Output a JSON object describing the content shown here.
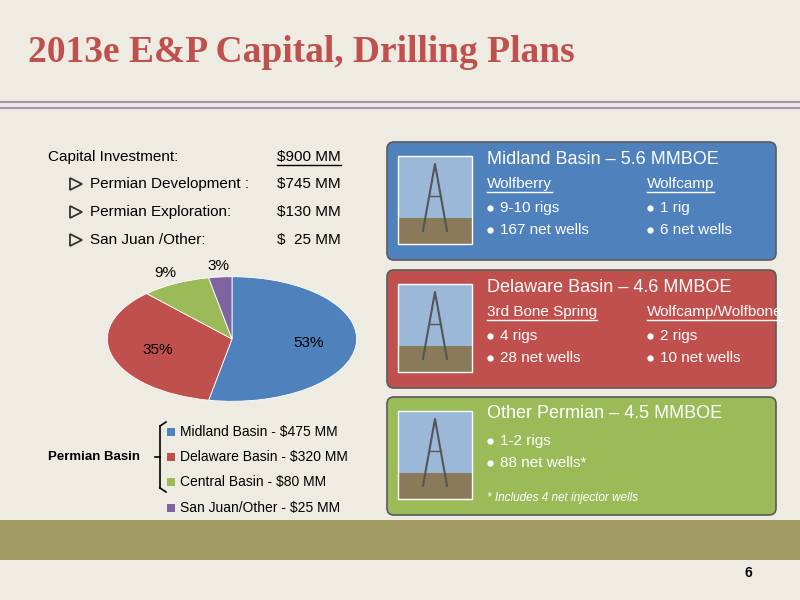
{
  "title": "2013e E&P Capital, Drilling Plans",
  "capital": {
    "rows": [
      [
        "Capital Investment:",
        "$900 MM"
      ],
      [
        "Permian Development :",
        "$745 MM"
      ],
      [
        "Permian Exploration:",
        "$130 MM"
      ],
      [
        "San Juan /Other:",
        "$  25 MM"
      ]
    ]
  },
  "chart_data": {
    "type": "pie",
    "categories": [
      "Midland Basin - $475 MM",
      "Delaware Basin - $320 MM",
      "Central Basin - $80 MM",
      "San Juan/Other - $25 MM"
    ],
    "values": [
      53,
      35,
      9,
      3
    ],
    "value_labels": [
      "53%",
      "35%",
      "9%",
      "3%"
    ],
    "colors": [
      "#4f81bd",
      "#c0504d",
      "#9bbb59",
      "#8064a2"
    ],
    "data_labels": true,
    "group_label": "Permian Basin"
  },
  "boxes": [
    {
      "heading": "Midland Basin – 5.6 MMBOE",
      "color": "#4f81bd",
      "columns": [
        {
          "header": "Wolfberry",
          "items": [
            "9-10 rigs",
            "167 net wells"
          ]
        },
        {
          "header": "Wolfcamp",
          "items": [
            "1 rig",
            "6 net wells"
          ]
        }
      ]
    },
    {
      "heading": "Delaware Basin – 4.6 MMBOE",
      "color": "#c0504d",
      "columns": [
        {
          "header": "3rd Bone Spring",
          "items": [
            "4 rigs",
            "28 net wells"
          ]
        },
        {
          "header": "Wolfcamp/Wolfbone",
          "items": [
            "2 rigs",
            "10 net wells"
          ]
        }
      ]
    },
    {
      "heading": "Other Permian – 4.5 MMBOE",
      "color": "#9bbb59",
      "columns": [
        {
          "items": [
            "1-2 rigs",
            "88 net wells*"
          ]
        }
      ],
      "note": "* Includes 4 net injector wells"
    }
  ],
  "page": "6"
}
